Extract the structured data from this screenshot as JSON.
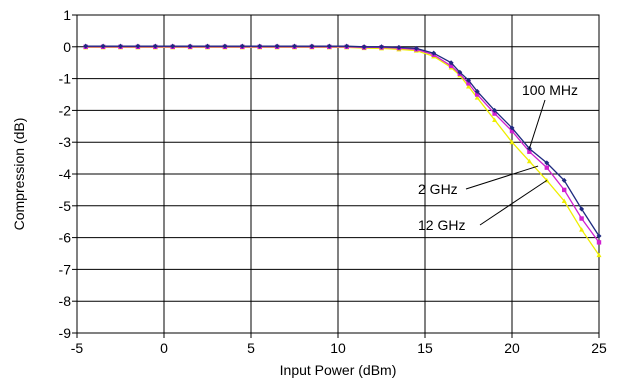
{
  "chart_data": {
    "type": "line",
    "title": "",
    "xlabel": "Input Power (dBm)",
    "ylabel": "Compression (dB)",
    "xlim": [
      -5,
      25
    ],
    "ylim": [
      -9,
      1
    ],
    "xticks": [
      -5,
      0,
      5,
      10,
      15,
      20,
      25
    ],
    "yticks": [
      1,
      0,
      -1,
      -2,
      -3,
      -4,
      -5,
      -6,
      -7,
      -8,
      -9
    ],
    "grid": true,
    "legend": "none",
    "series": [
      {
        "name": "100 MHz",
        "color": "#1f2a80",
        "marker": "diamond",
        "x": [
          -4.5,
          -3.5,
          -2.5,
          -1.5,
          -0.5,
          0.5,
          1.5,
          2.5,
          3.5,
          4.5,
          5.5,
          6.5,
          7.5,
          8.5,
          9.5,
          10.5,
          11.5,
          12.5,
          13.5,
          14.5,
          15.5,
          16.5,
          17,
          17.5,
          18,
          19,
          20,
          21,
          22,
          23,
          24,
          25
        ],
        "y": [
          0.02,
          0.02,
          0.02,
          0.02,
          0.02,
          0.02,
          0.02,
          0.02,
          0.02,
          0.02,
          0.02,
          0.02,
          0.02,
          0.02,
          0.02,
          0.02,
          0.0,
          0.0,
          -0.02,
          -0.05,
          -0.2,
          -0.5,
          -0.8,
          -1.05,
          -1.4,
          -2.0,
          -2.55,
          -3.2,
          -3.65,
          -4.2,
          -5.1,
          -5.95
        ]
      },
      {
        "name": "2 GHz",
        "color": "#d020d0",
        "marker": "square",
        "x": [
          -4.5,
          -3.5,
          -2.5,
          -1.5,
          -0.5,
          0.5,
          1.5,
          2.5,
          3.5,
          4.5,
          5.5,
          6.5,
          7.5,
          8.5,
          9.5,
          10.5,
          11.5,
          12.5,
          13.5,
          14.5,
          15.5,
          16.5,
          17,
          17.5,
          18,
          19,
          20,
          21,
          22,
          23,
          24,
          25
        ],
        "y": [
          0.0,
          0.0,
          0.0,
          0.0,
          0.0,
          0.0,
          0.0,
          0.0,
          0.0,
          0.0,
          0.0,
          0.0,
          0.0,
          0.0,
          0.0,
          0.0,
          -0.02,
          -0.02,
          -0.04,
          -0.08,
          -0.25,
          -0.6,
          -0.85,
          -1.15,
          -1.5,
          -2.1,
          -2.65,
          -3.3,
          -3.8,
          -4.5,
          -5.4,
          -6.15
        ]
      },
      {
        "name": "12 GHz",
        "color": "#eeee00",
        "marker": "triangle",
        "x": [
          -4.5,
          -3.5,
          -2.5,
          -1.5,
          -0.5,
          0.5,
          1.5,
          2.5,
          3.5,
          4.5,
          5.5,
          6.5,
          7.5,
          8.5,
          9.5,
          10.5,
          11.5,
          12.5,
          13.5,
          14.5,
          15.5,
          16.5,
          17,
          17.5,
          18,
          19,
          20,
          21,
          22,
          23,
          24,
          25
        ],
        "y": [
          -0.02,
          -0.02,
          -0.02,
          -0.02,
          -0.02,
          -0.02,
          -0.02,
          -0.02,
          -0.02,
          -0.02,
          -0.02,
          -0.02,
          -0.02,
          -0.02,
          -0.02,
          -0.02,
          -0.04,
          -0.05,
          -0.08,
          -0.12,
          -0.3,
          -0.65,
          -0.9,
          -1.25,
          -1.6,
          -2.3,
          -3.0,
          -3.6,
          -4.2,
          -4.85,
          -5.75,
          -6.55
        ]
      }
    ],
    "annotations": [
      {
        "text": "100 MHz",
        "series": "100 MHz",
        "x": 21,
        "y": -3.2
      },
      {
        "text": "2 GHz",
        "series": "2 GHz",
        "x": 21.5,
        "y": -3.75
      },
      {
        "text": "12 GHz",
        "series": "12 GHz",
        "x": 22,
        "y": -4.2
      }
    ]
  }
}
